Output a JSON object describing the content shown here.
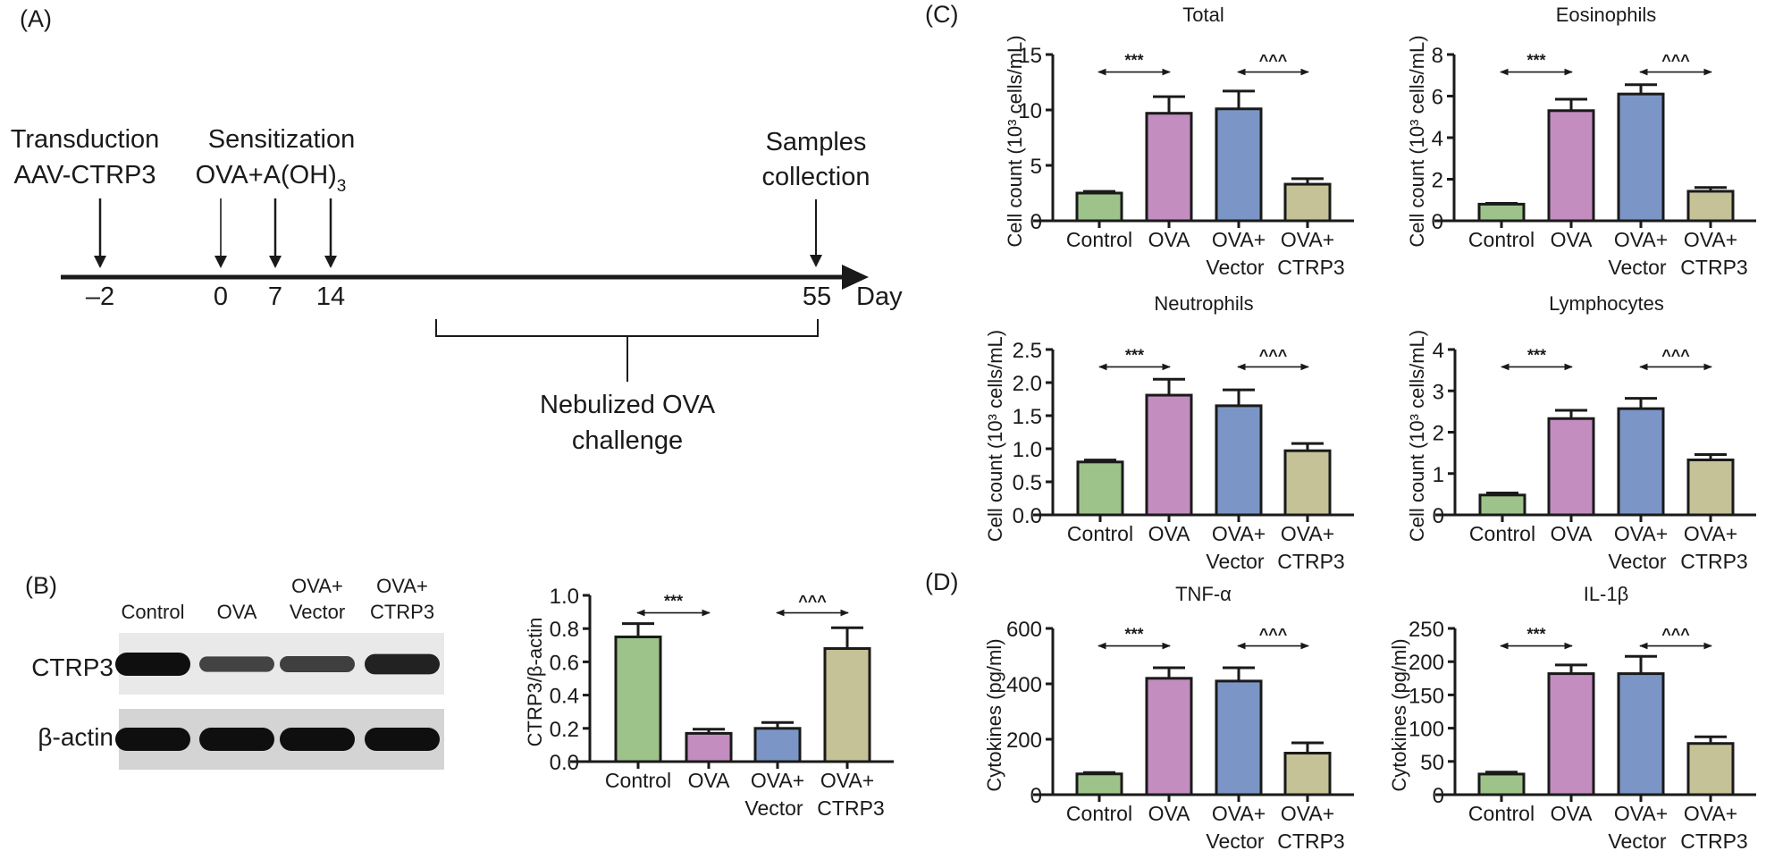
{
  "panels": {
    "A": {
      "label": "(A)",
      "events": [
        {
          "line1": "Transduction",
          "line2": "AAV-CTRP3"
        },
        {
          "line1": "Sensitization",
          "line2": "OVA+A(OH)",
          "line2_sub": "3"
        },
        {
          "line1": "Samples",
          "line2": "collection"
        }
      ],
      "days": [
        "–2",
        "0",
        "7",
        "14",
        "55"
      ],
      "axis_unit": "Day",
      "challenge": {
        "line1": "Nebulized OVA",
        "line2": "challenge"
      }
    },
    "B": {
      "label": "(B)",
      "blot_columns": [
        {
          "line1": "",
          "line2": "Control"
        },
        {
          "line1": "",
          "line2": "OVA"
        },
        {
          "line1": "OVA+",
          "line2": "Vector"
        },
        {
          "line1": "OVA+",
          "line2": "CTRP3"
        }
      ],
      "blot_rows": [
        "CTRP3",
        "β-actin"
      ],
      "blot_band_intensity": {
        "CTRP3": [
          1.0,
          0.45,
          0.5,
          0.8
        ],
        "β-actin": [
          1.0,
          1.0,
          1.0,
          1.0
        ]
      }
    },
    "C": {
      "label": "(C)"
    },
    "D": {
      "label": "(D)"
    }
  },
  "colors": {
    "Control": "#9dc38a",
    "OVA": "#c38dc0",
    "Vector": "#7b96c6",
    "CTRP3": "#c4c296",
    "axis": "#1a1a1a"
  },
  "chart_data": [
    {
      "id": "ctrp3-ratio",
      "type": "bar",
      "title": "",
      "categories": [
        "Control",
        "OVA",
        "OVA+ Vector",
        "OVA+ CTRP3"
      ],
      "category_lines": [
        [
          "Control",
          ""
        ],
        [
          "OVA",
          ""
        ],
        [
          "OVA+",
          "Vector"
        ],
        [
          "OVA+",
          "CTRP3"
        ]
      ],
      "values": [
        0.75,
        0.17,
        0.2,
        0.68
      ],
      "error": [
        0.08,
        0.025,
        0.035,
        0.125
      ],
      "ylabel": "CTRP3/β-actin",
      "ylim": [
        0,
        1.0
      ],
      "yticks": [
        "0.0",
        "0.2",
        "0.4",
        "0.6",
        "0.8",
        "1.0"
      ],
      "significance": [
        {
          "from": 0,
          "to": 1,
          "label": "***"
        },
        {
          "from": 2,
          "to": 3,
          "label": "^^^"
        }
      ]
    },
    {
      "id": "total",
      "type": "bar",
      "title": "Total",
      "categories": [
        "Control",
        "OVA",
        "OVA+ Vector",
        "OVA+ CTRP3"
      ],
      "category_lines": [
        [
          "Control",
          ""
        ],
        [
          "OVA",
          ""
        ],
        [
          "OVA+",
          "Vector"
        ],
        [
          "OVA+",
          "CTRP3"
        ]
      ],
      "values": [
        2.5,
        9.7,
        10.1,
        3.3
      ],
      "error": [
        0.15,
        1.5,
        1.6,
        0.5
      ],
      "ylabel": "Cell count (10³ cells/mL)",
      "ylim": [
        0,
        15
      ],
      "yticks": [
        "0",
        "5",
        "10",
        "15"
      ],
      "significance": [
        {
          "from": 0,
          "to": 1,
          "label": "***"
        },
        {
          "from": 2,
          "to": 3,
          "label": "^^^"
        }
      ]
    },
    {
      "id": "eosinophils",
      "type": "bar",
      "title": "Eosinophils",
      "categories": [
        "Control",
        "OVA",
        "OVA+ Vector",
        "OVA+ CTRP3"
      ],
      "category_lines": [
        [
          "Control",
          ""
        ],
        [
          "OVA",
          ""
        ],
        [
          "OVA+",
          "Vector"
        ],
        [
          "OVA+",
          "CTRP3"
        ]
      ],
      "values": [
        0.8,
        5.3,
        6.1,
        1.42
      ],
      "error": [
        0.04,
        0.55,
        0.45,
        0.18
      ],
      "ylabel": "Cell count (10³ cells/mL)",
      "ylim": [
        0,
        8
      ],
      "yticks": [
        "0",
        "2",
        "4",
        "6",
        "8"
      ],
      "significance": [
        {
          "from": 0,
          "to": 1,
          "label": "***"
        },
        {
          "from": 2,
          "to": 3,
          "label": "^^^"
        }
      ]
    },
    {
      "id": "neutrophils",
      "type": "bar",
      "title": "Neutrophils",
      "categories": [
        "Control",
        "OVA",
        "OVA+ Vector",
        "OVA+ CTRP3"
      ],
      "category_lines": [
        [
          "Control",
          ""
        ],
        [
          "OVA",
          ""
        ],
        [
          "OVA+",
          "Vector"
        ],
        [
          "OVA+",
          "CTRP3"
        ]
      ],
      "values": [
        0.8,
        1.81,
        1.65,
        0.97
      ],
      "error": [
        0.03,
        0.24,
        0.24,
        0.11
      ],
      "ylabel": "Cell count (10³ cells/mL)",
      "ylim": [
        0,
        2.5
      ],
      "yticks": [
        "0.0",
        "0.5",
        "1.0",
        "1.5",
        "2.0",
        "2.5"
      ],
      "significance": [
        {
          "from": 0,
          "to": 1,
          "label": "***"
        },
        {
          "from": 2,
          "to": 3,
          "label": "^^^"
        }
      ]
    },
    {
      "id": "lymphocytes",
      "type": "bar",
      "title": "Lymphocytes",
      "categories": [
        "Control",
        "OVA",
        "OVA+ Vector",
        "OVA+ CTRP3"
      ],
      "category_lines": [
        [
          "Control",
          ""
        ],
        [
          "OVA",
          ""
        ],
        [
          "OVA+",
          "Vector"
        ],
        [
          "OVA+",
          "CTRP3"
        ]
      ],
      "values": [
        0.48,
        2.33,
        2.57,
        1.33
      ],
      "error": [
        0.05,
        0.2,
        0.25,
        0.13
      ],
      "ylabel": "Cell count (10³ cells/mL)",
      "ylim": [
        0,
        4
      ],
      "yticks": [
        "0",
        "1",
        "2",
        "3",
        "4"
      ],
      "significance": [
        {
          "from": 0,
          "to": 1,
          "label": "***"
        },
        {
          "from": 2,
          "to": 3,
          "label": "^^^"
        }
      ]
    },
    {
      "id": "tnf-alpha",
      "type": "bar",
      "title": "TNF-α",
      "categories": [
        "Control",
        "OVA",
        "OVA+ Vector",
        "OVA+ CTRP3"
      ],
      "category_lines": [
        [
          "Control",
          ""
        ],
        [
          "OVA",
          ""
        ],
        [
          "OVA+",
          "Vector"
        ],
        [
          "OVA+",
          "CTRP3"
        ]
      ],
      "values": [
        75,
        420,
        410,
        150
      ],
      "error": [
        5,
        38,
        48,
        37
      ],
      "ylabel": "Cytokines (pg/ml)",
      "ylim": [
        0,
        600
      ],
      "yticks": [
        "0",
        "200",
        "400",
        "600"
      ],
      "significance": [
        {
          "from": 0,
          "to": 1,
          "label": "***"
        },
        {
          "from": 2,
          "to": 3,
          "label": "^^^"
        }
      ]
    },
    {
      "id": "il-1beta",
      "type": "bar",
      "title": "IL-1β",
      "categories": [
        "Control",
        "OVA",
        "OVA+ Vector",
        "OVA+ CTRP3"
      ],
      "category_lines": [
        [
          "Control",
          ""
        ],
        [
          "OVA",
          ""
        ],
        [
          "OVA+",
          "Vector"
        ],
        [
          "OVA+",
          "CTRP3"
        ]
      ],
      "values": [
        31,
        182,
        182,
        77
      ],
      "error": [
        3,
        13,
        26,
        10
      ],
      "ylabel": "Cytokines (pg/ml)",
      "ylim": [
        0,
        250
      ],
      "yticks": [
        "0",
        "50",
        "100",
        "150",
        "200",
        "250"
      ],
      "significance": [
        {
          "from": 0,
          "to": 1,
          "label": "***"
        },
        {
          "from": 2,
          "to": 3,
          "label": "^^^"
        }
      ]
    }
  ]
}
